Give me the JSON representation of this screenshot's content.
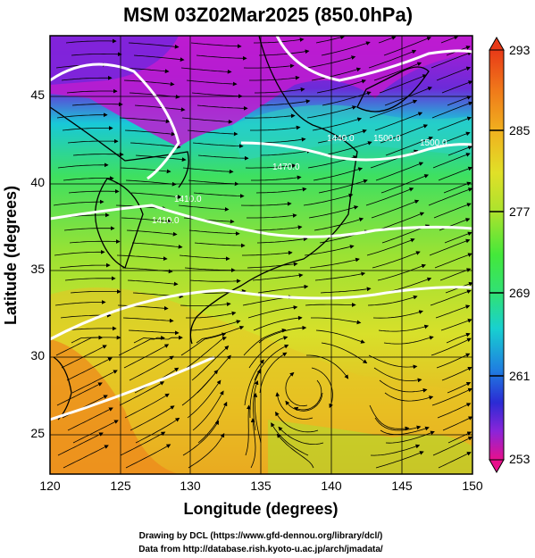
{
  "figure": {
    "title": "MSM 03Z02Mar2025 (850.0hPa)",
    "xlabel": "Longitude (degrees)",
    "ylabel": "Latitude  (degrees)",
    "credit_line1": "Drawing by DCL (https://www.gfd-dennou.org/library/dcl/)",
    "credit_line2": "Data from http://database.rish.kyoto-u.ac.jp/arch/jmadata/"
  },
  "axes": {
    "xticks": [
      "120",
      "125",
      "130",
      "135",
      "140",
      "145",
      "150"
    ],
    "yticks": [
      "25",
      "30",
      "35",
      "40",
      "45"
    ],
    "xrange": [
      120,
      150
    ],
    "yrange": [
      22.4,
      47.6
    ]
  },
  "colorbar": {
    "labels": [
      "293",
      "285",
      "277",
      "269",
      "261",
      "253"
    ],
    "range": [
      253,
      293
    ],
    "colors": [
      "#e8108c",
      "#8a25d9",
      "#2b2bd4",
      "#1f7fe0",
      "#18d0d0",
      "#2fe07a",
      "#44e83a",
      "#a8e22e",
      "#e0e028",
      "#f0b21f",
      "#f07a1a",
      "#e83a18"
    ]
  },
  "contours": {
    "labels": [
      "1500.0",
      "1470.0",
      "1440.0",
      "1410.0",
      "1410.0",
      "1500.0"
    ]
  },
  "chart_data": {
    "type": "heatmap",
    "title": "MSM 03Z02Mar2025 (850.0hPa)",
    "xlabel": "Longitude (degrees)",
    "ylabel": "Latitude  (degrees)",
    "xlim": [
      120,
      150
    ],
    "ylim": [
      22.4,
      47.6
    ],
    "colorbar_range": [
      253,
      293
    ],
    "colorbar_ticks": [
      293,
      285,
      277,
      269,
      261,
      253
    ],
    "contour_values": [
      1410,
      1440,
      1470,
      1500
    ]
  }
}
